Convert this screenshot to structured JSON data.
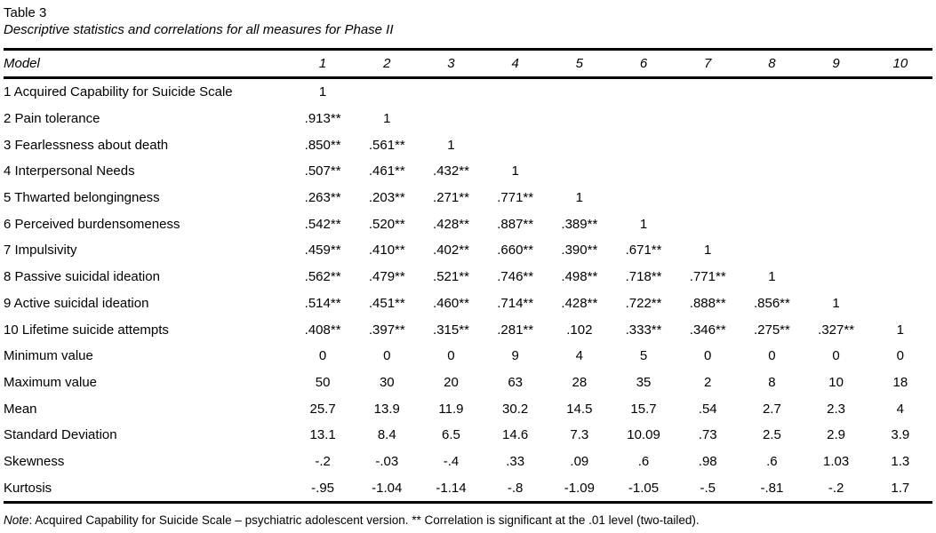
{
  "table": {
    "label": "Table 3",
    "title": "Descriptive statistics and correlations for all measures for Phase II",
    "header": {
      "model": "Model",
      "columns": [
        "1",
        "2",
        "3",
        "4",
        "5",
        "6",
        "7",
        "8",
        "9",
        "10"
      ]
    },
    "rows": [
      {
        "label": "1 Acquired Capability for Suicide Scale",
        "values": [
          "1",
          "",
          "",
          "",
          "",
          "",
          "",
          "",
          "",
          ""
        ]
      },
      {
        "label": "2 Pain tolerance",
        "values": [
          ".913**",
          "1",
          "",
          "",
          "",
          "",
          "",
          "",
          "",
          ""
        ]
      },
      {
        "label": "3 Fearlessness about death",
        "values": [
          ".850**",
          ".561**",
          "1",
          "",
          "",
          "",
          "",
          "",
          "",
          ""
        ]
      },
      {
        "label": "4 Interpersonal Needs",
        "values": [
          ".507**",
          ".461**",
          ".432**",
          "1",
          "",
          "",
          "",
          "",
          "",
          ""
        ]
      },
      {
        "label": "5 Thwarted belongingness",
        "values": [
          ".263**",
          ".203**",
          ".271**",
          ".771**",
          "1",
          "",
          "",
          "",
          "",
          ""
        ]
      },
      {
        "label": "6 Perceived burdensomeness",
        "values": [
          ".542**",
          ".520**",
          ".428**",
          ".887**",
          ".389**",
          "1",
          "",
          "",
          "",
          ""
        ]
      },
      {
        "label": "7 Impulsivity",
        "values": [
          ".459**",
          ".410**",
          ".402**",
          ".660**",
          ".390**",
          ".671**",
          "1",
          "",
          "",
          ""
        ]
      },
      {
        "label": "8 Passive suicidal ideation",
        "values": [
          ".562**",
          ".479**",
          ".521**",
          ".746**",
          ".498**",
          ".718**",
          ".771**",
          "1",
          "",
          ""
        ]
      },
      {
        "label": "9 Active suicidal ideation",
        "values": [
          ".514**",
          ".451**",
          ".460**",
          ".714**",
          ".428**",
          ".722**",
          ".888**",
          ".856**",
          "1",
          ""
        ]
      },
      {
        "label": "10 Lifetime suicide attempts",
        "values": [
          ".408**",
          ".397**",
          ".315**",
          ".281**",
          ".102",
          ".333**",
          ".346**",
          ".275**",
          ".327**",
          "1"
        ]
      },
      {
        "label": "Minimum value",
        "values": [
          "0",
          "0",
          "0",
          "9",
          "4",
          "5",
          "0",
          "0",
          "0",
          "0"
        ]
      },
      {
        "label": "Maximum value",
        "values": [
          "50",
          "30",
          "20",
          "63",
          "28",
          "35",
          "2",
          "8",
          "10",
          "18"
        ]
      },
      {
        "label": "Mean",
        "values": [
          "25.7",
          "13.9",
          "11.9",
          "30.2",
          "14.5",
          "15.7",
          ".54",
          "2.7",
          "2.3",
          "4"
        ]
      },
      {
        "label": "Standard Deviation",
        "values": [
          "13.1",
          "8.4",
          "6.5",
          "14.6",
          "7.3",
          "10.09",
          ".73",
          "2.5",
          "2.9",
          "3.9"
        ]
      },
      {
        "label": "Skewness",
        "values": [
          "-.2",
          "-.03",
          "-.4",
          ".33",
          ".09",
          ".6",
          ".98",
          ".6",
          "1.03",
          "1.3"
        ]
      },
      {
        "label": "Kurtosis",
        "values": [
          "-.95",
          "-1.04",
          "-1.14",
          "-.8",
          "-1.09",
          "-1.05",
          "-.5",
          "-.81",
          "-.2",
          "1.7"
        ]
      }
    ],
    "note": {
      "label": "Note",
      "text": ": Acquired Capability for Suicide Scale – psychiatric adolescent version. ** Correlation is significant at the .01 level (two-tailed)."
    }
  }
}
